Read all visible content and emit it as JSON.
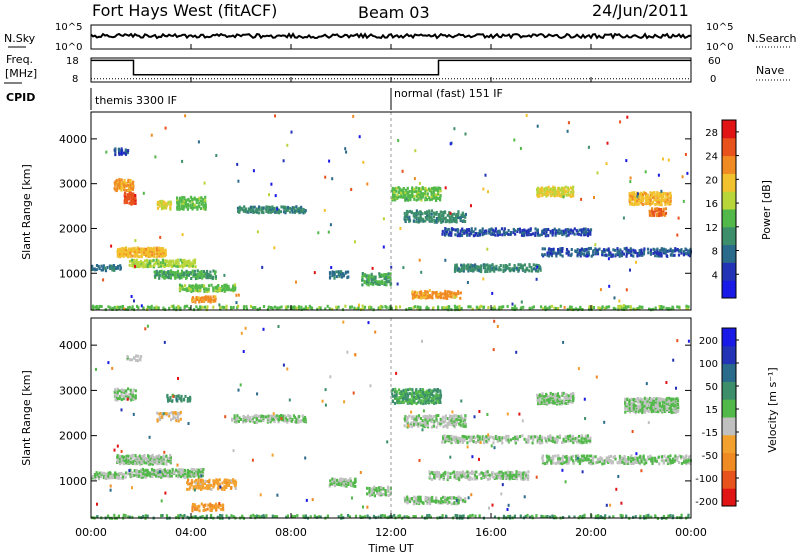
{
  "header": {
    "radar": "Fort Hays West (fitACF)",
    "beam": "Beam 03",
    "date": "24/Jun/2011"
  },
  "top_panels": {
    "nsky_label": "N.Sky",
    "nsearch_label": "N.Search",
    "nsky_ticks": [
      "10^5",
      "10^0"
    ],
    "nsearch_ticks": [
      "10^5",
      "10^0"
    ],
    "freq_label_1": "Freq.",
    "freq_label_2": "[MHz]",
    "freq_ticks": [
      "18",
      "8"
    ],
    "nave_label": "Nave",
    "nave_ticks": [
      "60",
      "0"
    ],
    "cpid_label": "CPID",
    "cpid_1": "themis 3300 IF",
    "cpid_2": "normal (fast) 151 IF"
  },
  "axes": {
    "y_label": "Slant Range [km]",
    "x_label": "Time UT",
    "x_ticks": [
      "00:00",
      "04:00",
      "08:00",
      "12:00",
      "16:00",
      "20:00",
      "00:00"
    ],
    "y_ticks": [
      "1000",
      "2000",
      "3000",
      "4000"
    ]
  },
  "colorbars": {
    "power_label": "Power [dB]",
    "power_ticks": [
      "4",
      "8",
      "12",
      "16",
      "20",
      "24",
      "28"
    ],
    "power_colors": [
      "#1a1ae6",
      "#2233b5",
      "#2a6a8a",
      "#3c8f6a",
      "#52b84a",
      "#b8d63a",
      "#f2c12e",
      "#f08a22",
      "#e8521c",
      "#e01414"
    ],
    "velocity_label": "Velocity [m s⁻¹]",
    "velocity_ticks": [
      "200",
      "100",
      "50",
      "15",
      "-15",
      "-50",
      "-100",
      "-200"
    ],
    "velocity_colors": [
      "#1a1ae6",
      "#2233b5",
      "#2a6a8a",
      "#3c8f6a",
      "#52b84a",
      "#c0c0c0",
      "#f2a02e",
      "#f08a22",
      "#e8521c",
      "#e01414"
    ]
  },
  "chart_data": [
    {
      "type": "line",
      "title": "N.Sky / N.Search",
      "x_range_hours": [
        0,
        24
      ],
      "y_scale": "log",
      "ylim": [
        1,
        100000
      ]
    },
    {
      "type": "line",
      "title": "Freq. [MHz] / Nave",
      "x": [
        0,
        1.7,
        1.7,
        13.9,
        13.9,
        24
      ],
      "freq_mhz": [
        17,
        17,
        11,
        11,
        17,
        17
      ],
      "nave": [
        8,
        8,
        8,
        8,
        8,
        8
      ],
      "freq_ylim": [
        8,
        18
      ],
      "nave_ylim": [
        0,
        60
      ]
    },
    {
      "type": "heatmap",
      "title": "Power [dB]",
      "x_range_hours": [
        0,
        24
      ],
      "ylim_km": [
        180,
        4600
      ],
      "color_range": [
        0,
        30
      ],
      "blobs": [
        {
          "t": 0.0,
          "t2": 1.2,
          "r": 1150,
          "h": 120,
          "v": 8,
          "d": 0.7
        },
        {
          "t": 0.9,
          "t2": 1.5,
          "r": 3750,
          "h": 150,
          "v": 6,
          "d": 0.5
        },
        {
          "t": 0.9,
          "t2": 1.7,
          "r": 3000,
          "h": 250,
          "v": 22,
          "d": 0.8
        },
        {
          "t": 1.3,
          "t2": 1.8,
          "r": 2700,
          "h": 260,
          "v": 26,
          "d": 0.8
        },
        {
          "t": 1.0,
          "t2": 3.0,
          "r": 1500,
          "h": 200,
          "v": 20,
          "d": 0.85
        },
        {
          "t": 1.5,
          "t2": 4.2,
          "r": 1250,
          "h": 160,
          "v": 16,
          "d": 0.8
        },
        {
          "t": 2.5,
          "t2": 5.0,
          "r": 1000,
          "h": 180,
          "v": 12,
          "d": 0.7
        },
        {
          "t": 3.5,
          "t2": 5.8,
          "r": 700,
          "h": 150,
          "v": 14,
          "d": 0.7
        },
        {
          "t": 4.0,
          "t2": 5.0,
          "r": 450,
          "h": 120,
          "v": 22,
          "d": 0.8
        },
        {
          "t": 2.6,
          "t2": 3.2,
          "r": 2550,
          "h": 180,
          "v": 18,
          "d": 0.7
        },
        {
          "t": 3.4,
          "t2": 4.6,
          "r": 2600,
          "h": 280,
          "v": 14,
          "d": 0.7
        },
        {
          "t": 5.8,
          "t2": 8.6,
          "r": 2450,
          "h": 140,
          "v": 10,
          "d": 0.7
        },
        {
          "t": 9.5,
          "t2": 10.3,
          "r": 1000,
          "h": 160,
          "v": 8,
          "d": 0.7
        },
        {
          "t": 10.8,
          "t2": 12.0,
          "r": 900,
          "h": 260,
          "v": 12,
          "d": 0.6
        },
        {
          "t": 12.0,
          "t2": 14.0,
          "r": 2800,
          "h": 300,
          "v": 14,
          "d": 0.7
        },
        {
          "t": 12.5,
          "t2": 15.0,
          "r": 2300,
          "h": 260,
          "v": 10,
          "d": 0.6
        },
        {
          "t": 14.0,
          "t2": 20.0,
          "r": 1950,
          "h": 160,
          "v": 6,
          "d": 0.6
        },
        {
          "t": 14.5,
          "t2": 18.0,
          "r": 1150,
          "h": 160,
          "v": 10,
          "d": 0.7
        },
        {
          "t": 12.8,
          "t2": 14.8,
          "r": 550,
          "h": 160,
          "v": 22,
          "d": 0.8
        },
        {
          "t": 17.8,
          "t2": 19.3,
          "r": 2850,
          "h": 220,
          "v": 18,
          "d": 0.8
        },
        {
          "t": 21.5,
          "t2": 23.2,
          "r": 2700,
          "h": 280,
          "v": 20,
          "d": 0.8
        },
        {
          "t": 22.3,
          "t2": 23.0,
          "r": 2400,
          "h": 160,
          "v": 24,
          "d": 0.8
        },
        {
          "t": 18.0,
          "t2": 24.0,
          "r": 1500,
          "h": 180,
          "v": 6,
          "d": 0.6
        },
        {
          "t": 0.0,
          "t2": 24.0,
          "r": 260,
          "h": 80,
          "v": 14,
          "d": 0.4
        }
      ]
    },
    {
      "type": "heatmap",
      "title": "Velocity [m s⁻¹]",
      "x_range_hours": [
        0,
        24
      ],
      "ylim_km": [
        180,
        4600
      ],
      "color_range": [
        -200,
        200
      ],
      "blobs": [
        {
          "t": 0.0,
          "t2": 1.5,
          "r": 1150,
          "h": 140,
          "v": 0,
          "d": 0.6
        },
        {
          "t": 0.9,
          "t2": 1.8,
          "r": 2950,
          "h": 260,
          "v": 0,
          "d": 0.7
        },
        {
          "t": 1.4,
          "t2": 2.0,
          "r": 3750,
          "h": 120,
          "v": -10,
          "d": 0.5
        },
        {
          "t": 1.0,
          "t2": 3.2,
          "r": 1500,
          "h": 200,
          "v": 0,
          "d": 0.8
        },
        {
          "t": 1.5,
          "t2": 4.5,
          "r": 1200,
          "h": 180,
          "v": 0,
          "d": 0.8
        },
        {
          "t": 3.0,
          "t2": 4.0,
          "r": 2850,
          "h": 160,
          "v": 60,
          "d": 0.6
        },
        {
          "t": 2.6,
          "t2": 3.6,
          "r": 2450,
          "h": 200,
          "v": -40,
          "d": 0.5
        },
        {
          "t": 3.8,
          "t2": 5.8,
          "r": 950,
          "h": 220,
          "v": -60,
          "d": 0.6
        },
        {
          "t": 4.0,
          "t2": 5.3,
          "r": 450,
          "h": 160,
          "v": -80,
          "d": 0.7
        },
        {
          "t": 5.6,
          "t2": 8.6,
          "r": 2400,
          "h": 160,
          "v": 0,
          "d": 0.7
        },
        {
          "t": 9.5,
          "t2": 10.6,
          "r": 1000,
          "h": 180,
          "v": 0,
          "d": 0.7
        },
        {
          "t": 11.0,
          "t2": 12.0,
          "r": 800,
          "h": 200,
          "v": 0,
          "d": 0.6
        },
        {
          "t": 12.0,
          "t2": 14.0,
          "r": 2900,
          "h": 320,
          "v": 40,
          "d": 0.7
        },
        {
          "t": 12.5,
          "t2": 15.0,
          "r": 2350,
          "h": 260,
          "v": 0,
          "d": 0.6
        },
        {
          "t": 14.0,
          "t2": 20.0,
          "r": 1950,
          "h": 160,
          "v": 0,
          "d": 0.6
        },
        {
          "t": 13.5,
          "t2": 17.5,
          "r": 1150,
          "h": 180,
          "v": 0,
          "d": 0.7
        },
        {
          "t": 12.5,
          "t2": 15.0,
          "r": 600,
          "h": 160,
          "v": 0,
          "d": 0.7
        },
        {
          "t": 17.8,
          "t2": 19.3,
          "r": 2850,
          "h": 240,
          "v": 0,
          "d": 0.8
        },
        {
          "t": 21.3,
          "t2": 23.5,
          "r": 2700,
          "h": 320,
          "v": 0,
          "d": 0.8
        },
        {
          "t": 18.0,
          "t2": 24.0,
          "r": 1500,
          "h": 180,
          "v": 0,
          "d": 0.6
        },
        {
          "t": 0.0,
          "t2": 24.0,
          "r": 240,
          "h": 70,
          "v": 40,
          "d": 0.5
        }
      ]
    }
  ]
}
